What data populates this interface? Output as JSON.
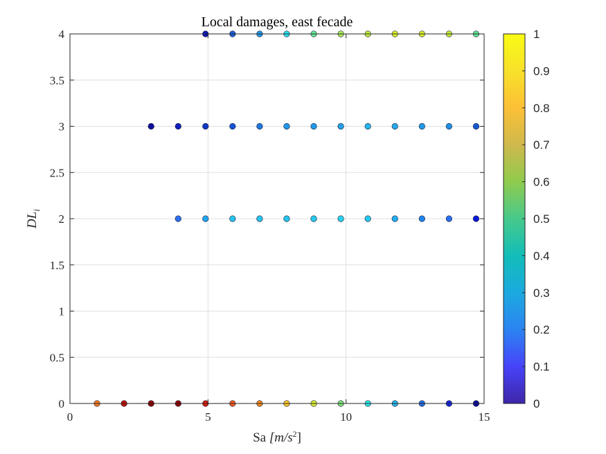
{
  "chart_data": {
    "type": "scatter",
    "title": "Local damages, east fecade",
    "xlabel_prefix": "Sa ",
    "xlabel_unit": "[m/s",
    "xlabel_exp": "2",
    "xlabel_close": "]",
    "ylabel_main": "DL",
    "ylabel_sub": "i",
    "xlim": [
      0,
      15
    ],
    "ylim": [
      0,
      4
    ],
    "xticks": [
      0,
      5,
      10,
      15
    ],
    "xtick_labels": [
      "0",
      "5",
      "10",
      "15"
    ],
    "yticks": [
      0,
      0.5,
      1,
      1.5,
      2,
      2.5,
      3,
      3.5,
      4
    ],
    "ytick_labels": [
      "0",
      "0.5",
      "1",
      "1.5",
      "2",
      "2.5",
      "3",
      "3.5",
      "4"
    ],
    "grid": true,
    "colormap": "jet",
    "colorbar": {
      "range": [
        0,
        1
      ],
      "ticks": [
        0,
        0.1,
        0.2,
        0.3,
        0.4,
        0.5,
        0.6,
        0.7,
        0.8,
        0.9,
        1
      ],
      "tick_labels": [
        "0",
        "0.1",
        "0.2",
        "0.3",
        "0.4",
        "0.5",
        "0.6",
        "0.7",
        "0.8",
        "0.9",
        "1"
      ],
      "colors": [
        "#3e26a8",
        "#4743f9",
        "#2c84f2",
        "#1ca9df",
        "#12bdb8",
        "#47c98c",
        "#8fcb4d",
        "#cfb94c",
        "#fcc037",
        "#f8e12a",
        "#f9fb15"
      ]
    },
    "series": [
      {
        "dl": 0,
        "x": [
          0.98,
          1.96,
          2.94,
          3.92,
          4.91,
          5.89,
          6.87,
          7.85,
          8.83,
          9.81,
          10.79,
          11.77,
          12.75,
          13.73,
          14.71
        ],
        "values": [
          0.82,
          0.95,
          1.0,
          1.0,
          0.92,
          0.85,
          0.8,
          0.72,
          0.68,
          0.6,
          0.5,
          0.42,
          0.35,
          0.15,
          0.05
        ],
        "colors": [
          "#f07a22",
          "#c21008",
          "#8c0000",
          "#8c0000",
          "#d61a0c",
          "#f25a1e",
          "#f28a1c",
          "#fbc82a",
          "#d9ec2c",
          "#7fe37a",
          "#2fe4e6",
          "#28b6e8",
          "#2470e0",
          "#1525dd",
          "#0a0a9a"
        ]
      },
      {
        "dl": 2,
        "x": [
          3.92,
          4.91,
          5.89,
          6.87,
          7.85,
          8.83,
          9.81,
          10.79,
          11.77,
          12.75,
          13.73,
          14.71
        ],
        "values": [
          0.3,
          0.4,
          0.45,
          0.45,
          0.45,
          0.46,
          0.48,
          0.46,
          0.42,
          0.35,
          0.3,
          0.12
        ],
        "colors": [
          "#2c6ff0",
          "#22a5ef",
          "#25c3ee",
          "#25c3ee",
          "#25c3ee",
          "#25c8ee",
          "#27d2ee",
          "#25c8ee",
          "#1fadef",
          "#2183ee",
          "#2a6ef0",
          "#0a18d8"
        ]
      },
      {
        "dl": 3,
        "x": [
          2.94,
          3.92,
          4.91,
          5.89,
          6.87,
          7.85,
          8.83,
          9.81,
          10.79,
          11.77,
          12.75,
          13.73,
          14.71
        ],
        "values": [
          0.1,
          0.12,
          0.18,
          0.25,
          0.32,
          0.36,
          0.38,
          0.4,
          0.42,
          0.4,
          0.38,
          0.34,
          0.25
        ],
        "colors": [
          "#0e0f9c",
          "#0f1fb8",
          "#1138c4",
          "#1655d6",
          "#1d78de",
          "#2096e6",
          "#2299e8",
          "#24a2ea",
          "#25b5ec",
          "#24a8ea",
          "#2299e8",
          "#1f8ee6",
          "#1459d0"
        ]
      },
      {
        "dl": 4,
        "x": [
          4.91,
          5.89,
          6.87,
          7.85,
          8.83,
          9.81,
          10.79,
          11.77,
          12.75,
          13.73,
          14.71
        ],
        "values": [
          0.1,
          0.25,
          0.35,
          0.5,
          0.6,
          0.7,
          0.72,
          0.75,
          0.75,
          0.72,
          0.62
        ],
        "colors": [
          "#0d18b4",
          "#1a5ed8",
          "#2297e8",
          "#27e0ec",
          "#66e695",
          "#a9ec5a",
          "#c5ee3a",
          "#dcf02a",
          "#d8f02c",
          "#c6ee38",
          "#5ee690"
        ]
      }
    ]
  }
}
